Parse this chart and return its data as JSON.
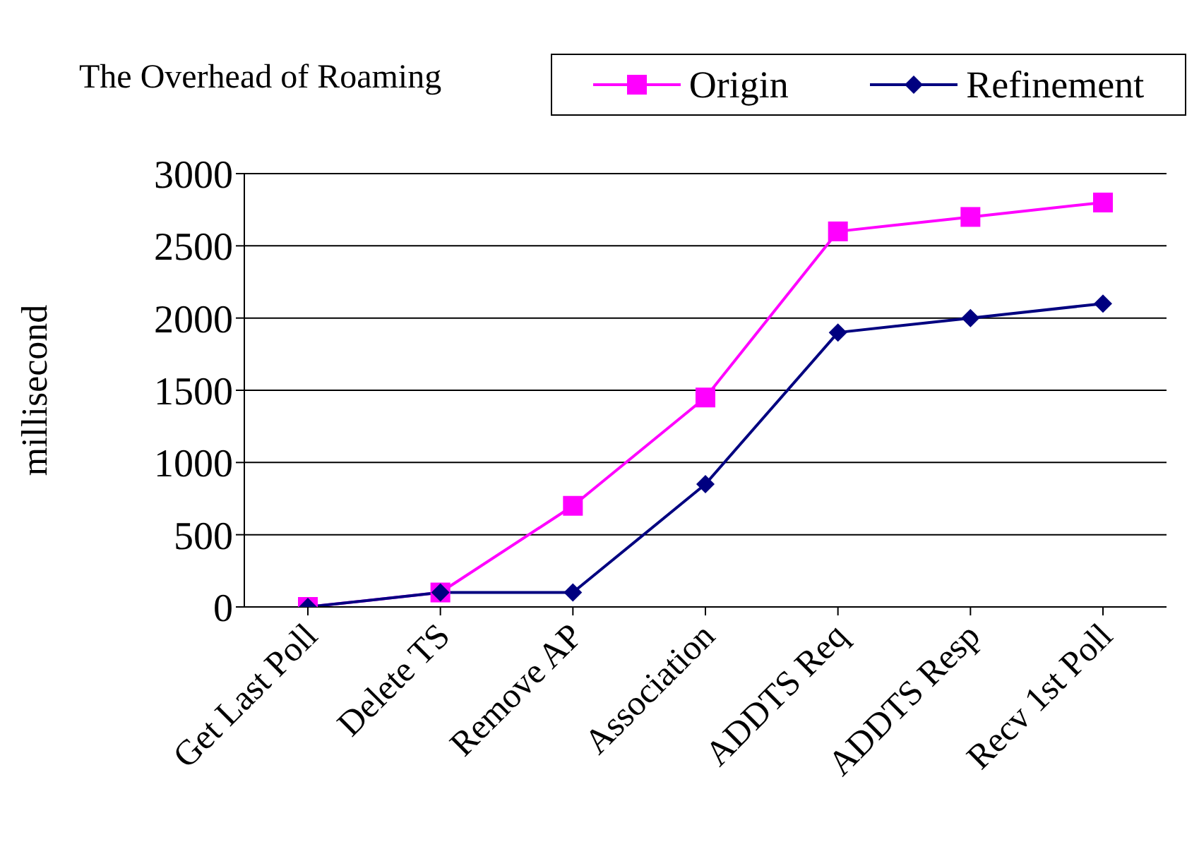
{
  "chart_data": {
    "type": "line",
    "title": "The Overhead of Roaming",
    "ylabel": "millisecond",
    "categories": [
      "Get Last Poll",
      "Delete TS",
      "Remove AP",
      "Association",
      "ADDTS Req",
      "ADDTS Resp",
      "Recv 1st Poll"
    ],
    "series": [
      {
        "name": "Origin",
        "color": "#ff00ff",
        "marker": "square",
        "values": [
          0,
          100,
          700,
          1450,
          2600,
          2700,
          2800
        ]
      },
      {
        "name": "Refinement",
        "color": "#000080",
        "marker": "diamond",
        "values": [
          0,
          100,
          100,
          850,
          1900,
          2000,
          2100
        ]
      }
    ],
    "ylim": [
      0,
      3000
    ],
    "yticks": [
      0,
      500,
      1000,
      1500,
      2000,
      2500,
      3000
    ],
    "grid": "y",
    "legend": "top right",
    "line_style": "solid"
  }
}
